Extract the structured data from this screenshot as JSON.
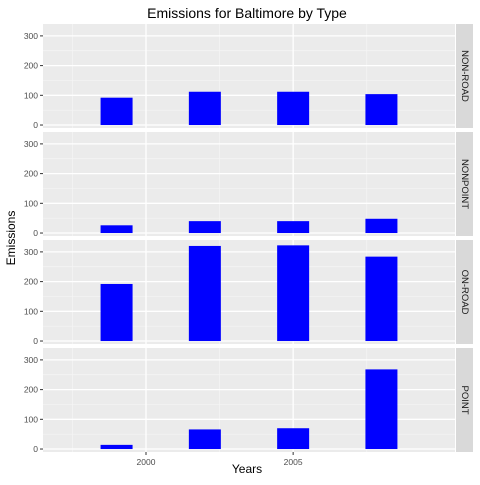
{
  "chart_data": {
    "type": "bar",
    "title": "Emissions for Baltimore by Type",
    "xlabel": "Years",
    "ylabel": "Emissions",
    "x": [
      1999,
      2002,
      2005,
      2008
    ],
    "x_ticks": [
      2000,
      2005
    ],
    "x_tick_labels": [
      "2000",
      "2005"
    ],
    "xlim": [
      1996.5,
      2010.5
    ],
    "ylim": [
      -10,
      340
    ],
    "y_ticks": [
      0,
      100,
      200,
      300
    ],
    "y_tick_labels": [
      "0",
      "100",
      "200",
      "300"
    ],
    "grid": true,
    "bar_color": "#0000FF",
    "panel_bg": "#EBEBEB",
    "strip_bg": "#D9D9D9",
    "facets": [
      {
        "label": "NON-ROAD",
        "values": [
          92,
          112,
          112,
          104
        ]
      },
      {
        "label": "NONPOINT",
        "values": [
          26,
          40,
          40,
          48
        ]
      },
      {
        "label": "ON-ROAD",
        "values": [
          192,
          320,
          322,
          284
        ]
      },
      {
        "label": "POINT",
        "values": [
          14,
          66,
          70,
          268
        ]
      }
    ]
  }
}
